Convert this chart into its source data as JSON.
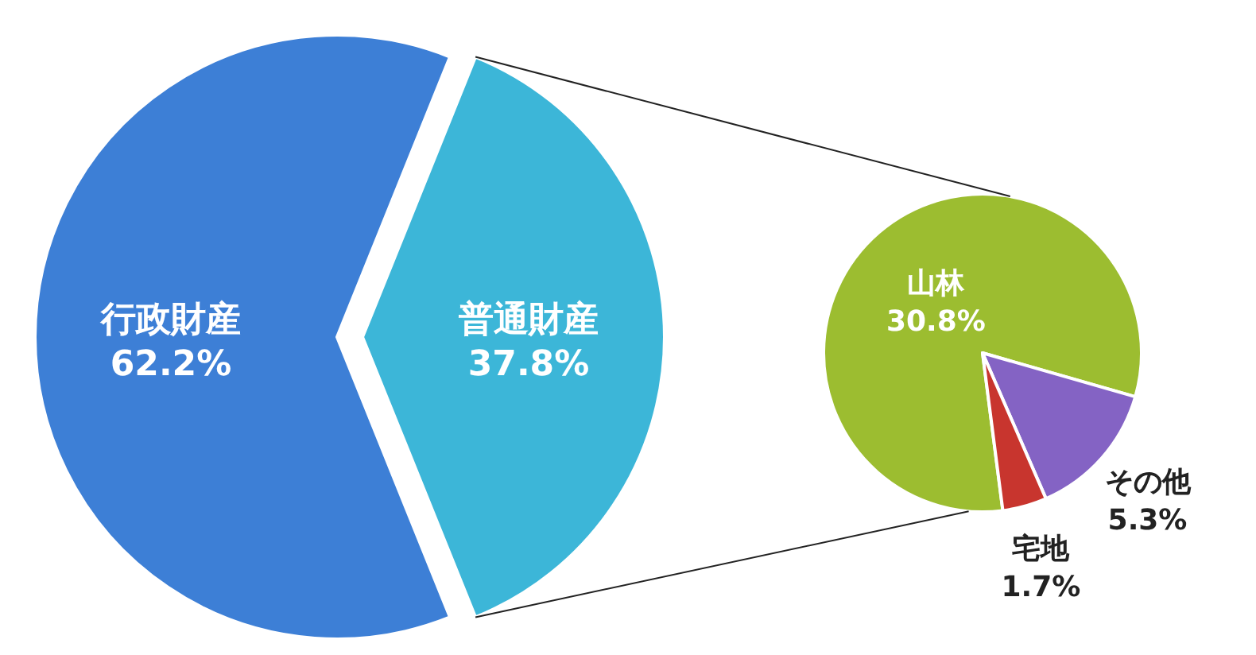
{
  "chart_data": [
    {
      "type": "pie",
      "categories": [
        "行政財産",
        "普通財産"
      ],
      "values": [
        62.2,
        37.8
      ],
      "value_labels": [
        "62.2%",
        "37.8%"
      ],
      "colors": [
        "#3d7fd6",
        "#3cb6d8"
      ]
    },
    {
      "type": "pie",
      "categories": [
        "山林",
        "その他",
        "宅地"
      ],
      "values": [
        30.8,
        5.3,
        1.7
      ],
      "value_labels": [
        "30.8%",
        "5.3%",
        "1.7%"
      ],
      "colors": [
        "#9cbd30",
        "#8463c4",
        "#c8352e"
      ]
    }
  ]
}
